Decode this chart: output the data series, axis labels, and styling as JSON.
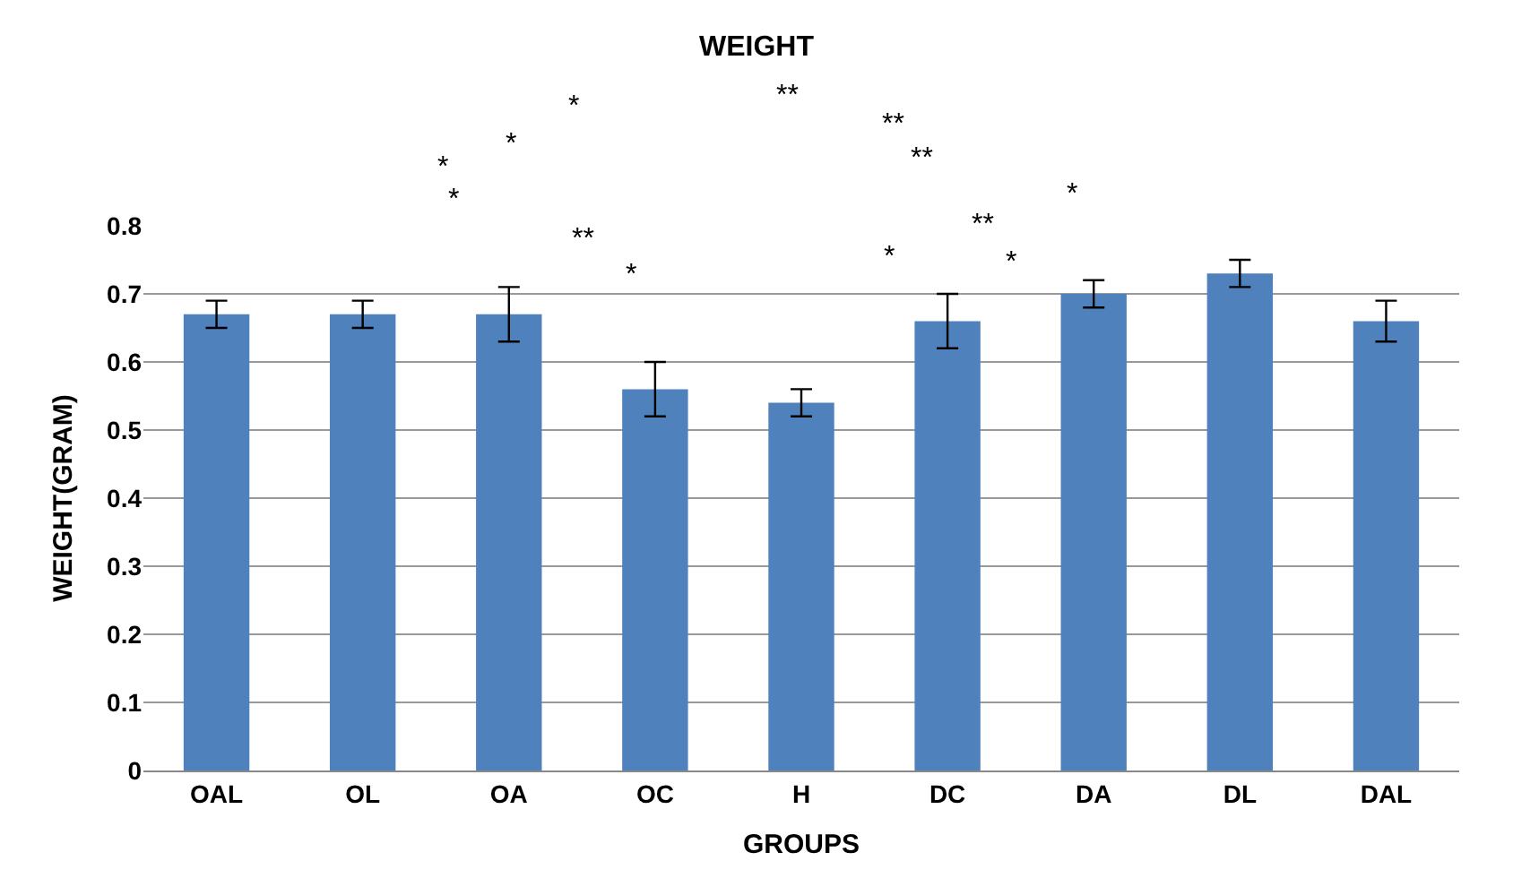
{
  "chart_data": {
    "type": "bar",
    "title": "WEIGHT",
    "xlabel": "GROUPS",
    "ylabel": "WEIGHT(GRAM)",
    "categories": [
      "OAL",
      "OL",
      "OA",
      "OC",
      "H",
      "DC",
      "DA",
      "DL",
      "DAL"
    ],
    "values": [
      0.67,
      0.67,
      0.67,
      0.56,
      0.54,
      0.66,
      0.7,
      0.73,
      0.66
    ],
    "errors": [
      0.02,
      0.02,
      0.04,
      0.04,
      0.02,
      0.04,
      0.02,
      0.02,
      0.03
    ],
    "color": "#4f81bd",
    "ylim": [
      0,
      0.8
    ],
    "yticks": [
      0,
      0.1,
      0.2,
      0.3,
      0.4,
      0.5,
      0.6,
      0.7,
      0.8
    ],
    "grid": "y",
    "legend": false,
    "annotations": [
      "*",
      "**",
      "**",
      "*",
      "**",
      "*",
      "*",
      "*",
      "**",
      "**",
      "*",
      "*",
      "*"
    ]
  }
}
